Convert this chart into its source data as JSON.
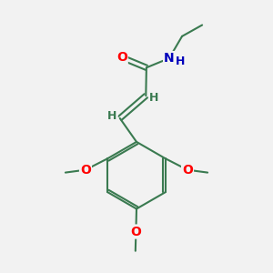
{
  "background_color": "#f2f2f2",
  "bond_color": "#3a7a50",
  "bond_width": 1.5,
  "atom_colors": {
    "O": "#ff0000",
    "N": "#0000bb",
    "H": "#3a7a50"
  },
  "font_size_atom": 10,
  "font_size_h": 9,
  "scale": 1.0
}
